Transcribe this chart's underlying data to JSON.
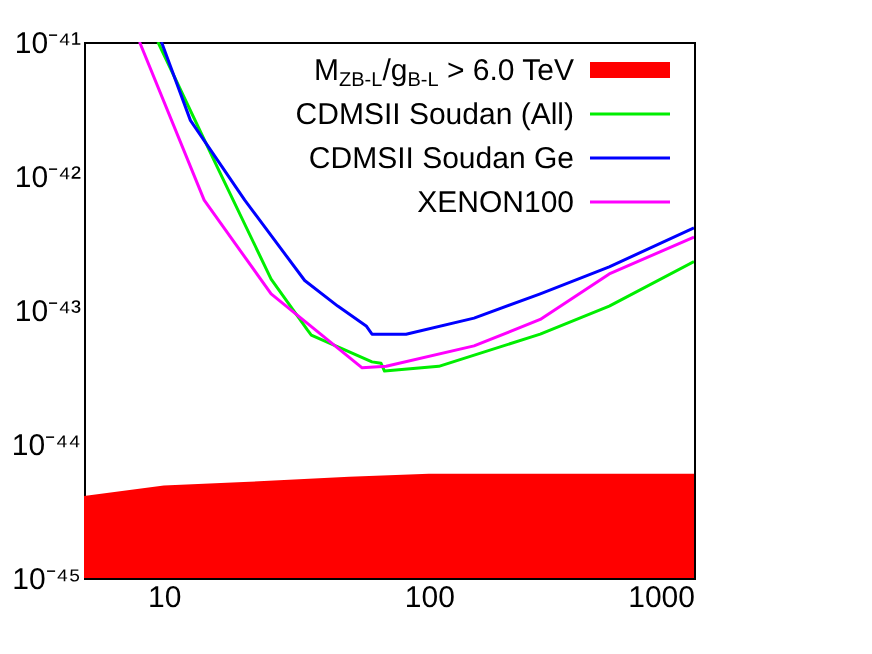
{
  "chart_data": {
    "type": "line",
    "xlim": [
      5,
      1000
    ],
    "ylim": [
      1e-45,
      1e-41
    ],
    "log": "xy",
    "legend": "top right",
    "grid": false,
    "xticks": [
      10,
      100,
      1000
    ],
    "yticks": [
      {
        "value": 1e-45,
        "label": "10⁻⁴⁵"
      },
      {
        "value": 1e-44,
        "label": "10⁻⁴⁴"
      },
      {
        "value": 1e-43,
        "label": "10⁻⁴³"
      },
      {
        "value": 1e-42,
        "label": "10⁻⁴²"
      },
      {
        "value": 1e-41,
        "label": "10⁻⁴¹"
      }
    ],
    "series": [
      {
        "name": "M$_{ZB-L}$/g$_{B-L}$ > 6.0 TeV",
        "type": "area",
        "color": "#ff0000",
        "x": [
          5,
          10,
          20,
          50,
          100,
          300,
          1000
        ],
        "values": [
          4.1e-45,
          4.9e-45,
          5.2e-45,
          5.7e-45,
          6e-45,
          6e-45,
          6e-45
        ]
      },
      {
        "name": "CDMSII Soudan (All)",
        "color": "#00ee00",
        "x": [
          9.5,
          15.8,
          25.4,
          34.8,
          36,
          61,
          66,
          68,
          109,
          263,
          479,
          1000
        ],
        "values": [
          1e-41,
          1.2e-42,
          1.7e-43,
          7.1e-44,
          6.5e-44,
          4.1e-44,
          4e-44,
          3.5e-44,
          3.8e-44,
          6.6e-44,
          1.07e-43,
          2.3e-43
        ]
      },
      {
        "name": "CDMSII Soudan Ge",
        "color": "#0000ff",
        "x": [
          9.8,
          12.6,
          20.2,
          34,
          45.3,
          58,
          61,
          82,
          148,
          263,
          479,
          1000
        ],
        "values": [
          1e-41,
          2.6e-42,
          6.6e-43,
          1.66e-43,
          1.07e-43,
          7.6e-44,
          6.6e-44,
          6.6e-44,
          8.7e-44,
          1.32e-43,
          2.1e-43,
          4.1e-43
        ]
      },
      {
        "name": "XENON100",
        "color": "#ff00ff",
        "x": [
          8.1,
          14.2,
          25.4,
          56,
          69,
          148,
          263,
          479,
          1000
        ],
        "values": [
          1e-41,
          6.6e-43,
          1.32e-43,
          3.7e-44,
          3.8e-44,
          5.4e-44,
          8.5e-44,
          1.86e-43,
          3.5e-43
        ]
      }
    ]
  }
}
